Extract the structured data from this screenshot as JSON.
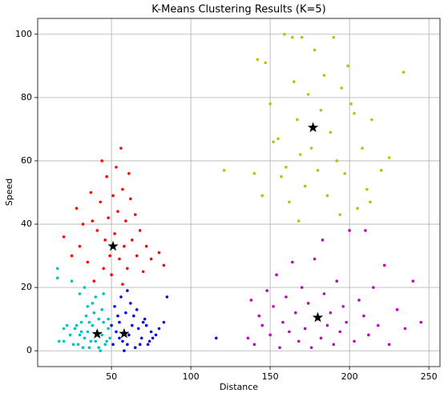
{
  "chart_data": {
    "type": "scatter",
    "title": "K-Means Clustering Results (K=5)",
    "x_label": "Distance",
    "y_label": "Speed",
    "xlim": [
      3.5,
      257
    ],
    "ylim": [
      -5,
      105
    ],
    "xticks": [
      50,
      100,
      150,
      200,
      250
    ],
    "yticks": [
      0,
      20,
      40,
      60,
      80,
      100
    ],
    "grid": true,
    "series": [
      {
        "color": "#00bfbf",
        "marker": "dot",
        "x": [
          20,
          24,
          27,
          29,
          31,
          33,
          35,
          36,
          38,
          40,
          42,
          44,
          46,
          48,
          49,
          30,
          34,
          37,
          41,
          45,
          28,
          32,
          39,
          43,
          47,
          26,
          35,
          40,
          44,
          48,
          31,
          36,
          42,
          17,
          22,
          33,
          38,
          45,
          16,
          16,
          25,
          30,
          20
        ],
        "values": [
          3,
          5,
          7,
          2,
          9,
          4,
          6,
          1,
          8,
          3,
          10,
          5,
          2,
          7,
          4,
          5,
          11,
          3,
          6,
          9,
          8,
          1,
          12,
          0,
          3,
          2,
          14,
          17,
          13,
          10,
          6,
          9,
          1,
          3,
          8,
          20,
          15,
          18,
          26,
          23,
          22,
          18,
          7
        ]
      },
      {
        "color": "#0000ff",
        "marker": "dot",
        "x": [
          51,
          53,
          55,
          57,
          59,
          61,
          63,
          65,
          67,
          69,
          71,
          73,
          75,
          52,
          56,
          60,
          54,
          58,
          62,
          66,
          70,
          74,
          78,
          80,
          85,
          83,
          64,
          68,
          72,
          76,
          116,
          50,
          55,
          60
        ],
        "values": [
          2,
          6,
          9,
          3,
          12,
          5,
          8,
          1,
          7,
          4,
          10,
          2,
          6,
          14,
          17,
          19,
          11,
          0,
          15,
          13,
          9,
          3,
          5,
          7,
          17,
          9,
          11,
          2,
          8,
          4,
          4,
          8,
          4,
          2
        ]
      },
      {
        "color": "#ff0000",
        "marker": "dot",
        "x": [
          20,
          25,
          28,
          30,
          32,
          35,
          37,
          39,
          41,
          43,
          45,
          46,
          47,
          48,
          49,
          50,
          52,
          53,
          54,
          55,
          56,
          57,
          58,
          59,
          60,
          62,
          63,
          65,
          66,
          68,
          70,
          72,
          75,
          80,
          83,
          44,
          51,
          57,
          38,
          61
        ],
        "values": [
          36,
          30,
          45,
          33,
          40,
          28,
          50,
          22,
          38,
          47,
          26,
          35,
          55,
          42,
          30,
          24,
          37,
          58,
          44,
          29,
          64,
          51,
          33,
          41,
          26,
          48,
          35,
          43,
          30,
          38,
          25,
          33,
          29,
          31,
          27,
          60,
          49,
          21,
          41,
          56
        ]
      },
      {
        "color": "#bfbf00",
        "marker": "dot",
        "x": [
          121,
          140,
          142,
          145,
          147,
          150,
          152,
          155,
          157,
          159,
          160,
          162,
          164,
          165,
          167,
          169,
          170,
          172,
          174,
          176,
          178,
          180,
          182,
          184,
          186,
          188,
          190,
          192,
          195,
          197,
          199,
          201,
          203,
          205,
          208,
          211,
          214,
          220,
          225,
          234,
          213,
          194,
          168
        ],
        "values": [
          57,
          56,
          92,
          49,
          91,
          78,
          66,
          67,
          55,
          100,
          58,
          47,
          99,
          85,
          73,
          62,
          99,
          52,
          81,
          64,
          95,
          57,
          76,
          87,
          49,
          69,
          99,
          60,
          83,
          56,
          90,
          78,
          75,
          45,
          64,
          51,
          73,
          57,
          61,
          88,
          47,
          43,
          41
        ]
      },
      {
        "color": "#bf00bf",
        "marker": "dot",
        "x": [
          136,
          138,
          140,
          143,
          145,
          148,
          150,
          152,
          154,
          156,
          158,
          160,
          162,
          164,
          166,
          168,
          170,
          172,
          174,
          176,
          178,
          180,
          182,
          184,
          186,
          188,
          190,
          192,
          194,
          196,
          198,
          200,
          203,
          206,
          209,
          212,
          215,
          218,
          222,
          225,
          230,
          235,
          240,
          245,
          183,
          210
        ],
        "values": [
          4,
          16,
          2,
          11,
          8,
          19,
          5,
          14,
          24,
          1,
          9,
          17,
          6,
          28,
          12,
          3,
          20,
          7,
          15,
          1,
          29,
          10,
          4,
          18,
          8,
          12,
          2,
          22,
          6,
          14,
          9,
          38,
          3,
          16,
          11,
          5,
          20,
          8,
          27,
          2,
          13,
          7,
          22,
          9,
          35,
          38
        ]
      },
      {
        "color": "#000000",
        "marker": "star",
        "x": [
          41,
          58,
          51,
          177,
          180
        ],
        "values": [
          5.3,
          5.4,
          33,
          70.5,
          10.5
        ]
      }
    ]
  }
}
